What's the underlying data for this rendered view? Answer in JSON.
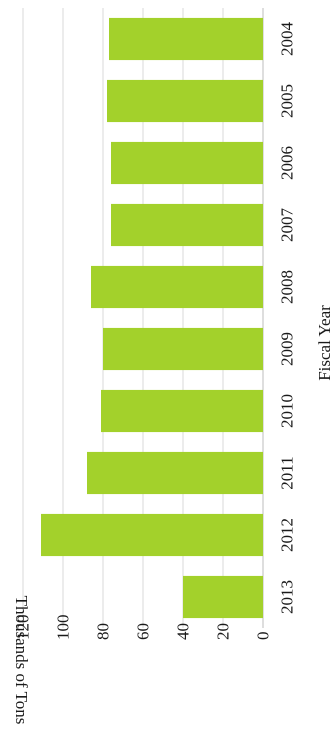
{
  "chart_data": {
    "type": "bar",
    "orientation": "horizontal",
    "categories": [
      "2004",
      "2005",
      "2006",
      "2007",
      "2008",
      "2009",
      "2010",
      "2011",
      "2012",
      "2013"
    ],
    "values": [
      77,
      78,
      76,
      76,
      86,
      80,
      81,
      88,
      111,
      40
    ],
    "xlabel": "Fiscal Year",
    "ylabel": "Thousands of Tons",
    "ylim": [
      0,
      120
    ],
    "yticks": [
      0,
      20,
      40,
      60,
      80,
      100,
      120
    ],
    "grid": true,
    "bar_color": "#a3d12b"
  }
}
